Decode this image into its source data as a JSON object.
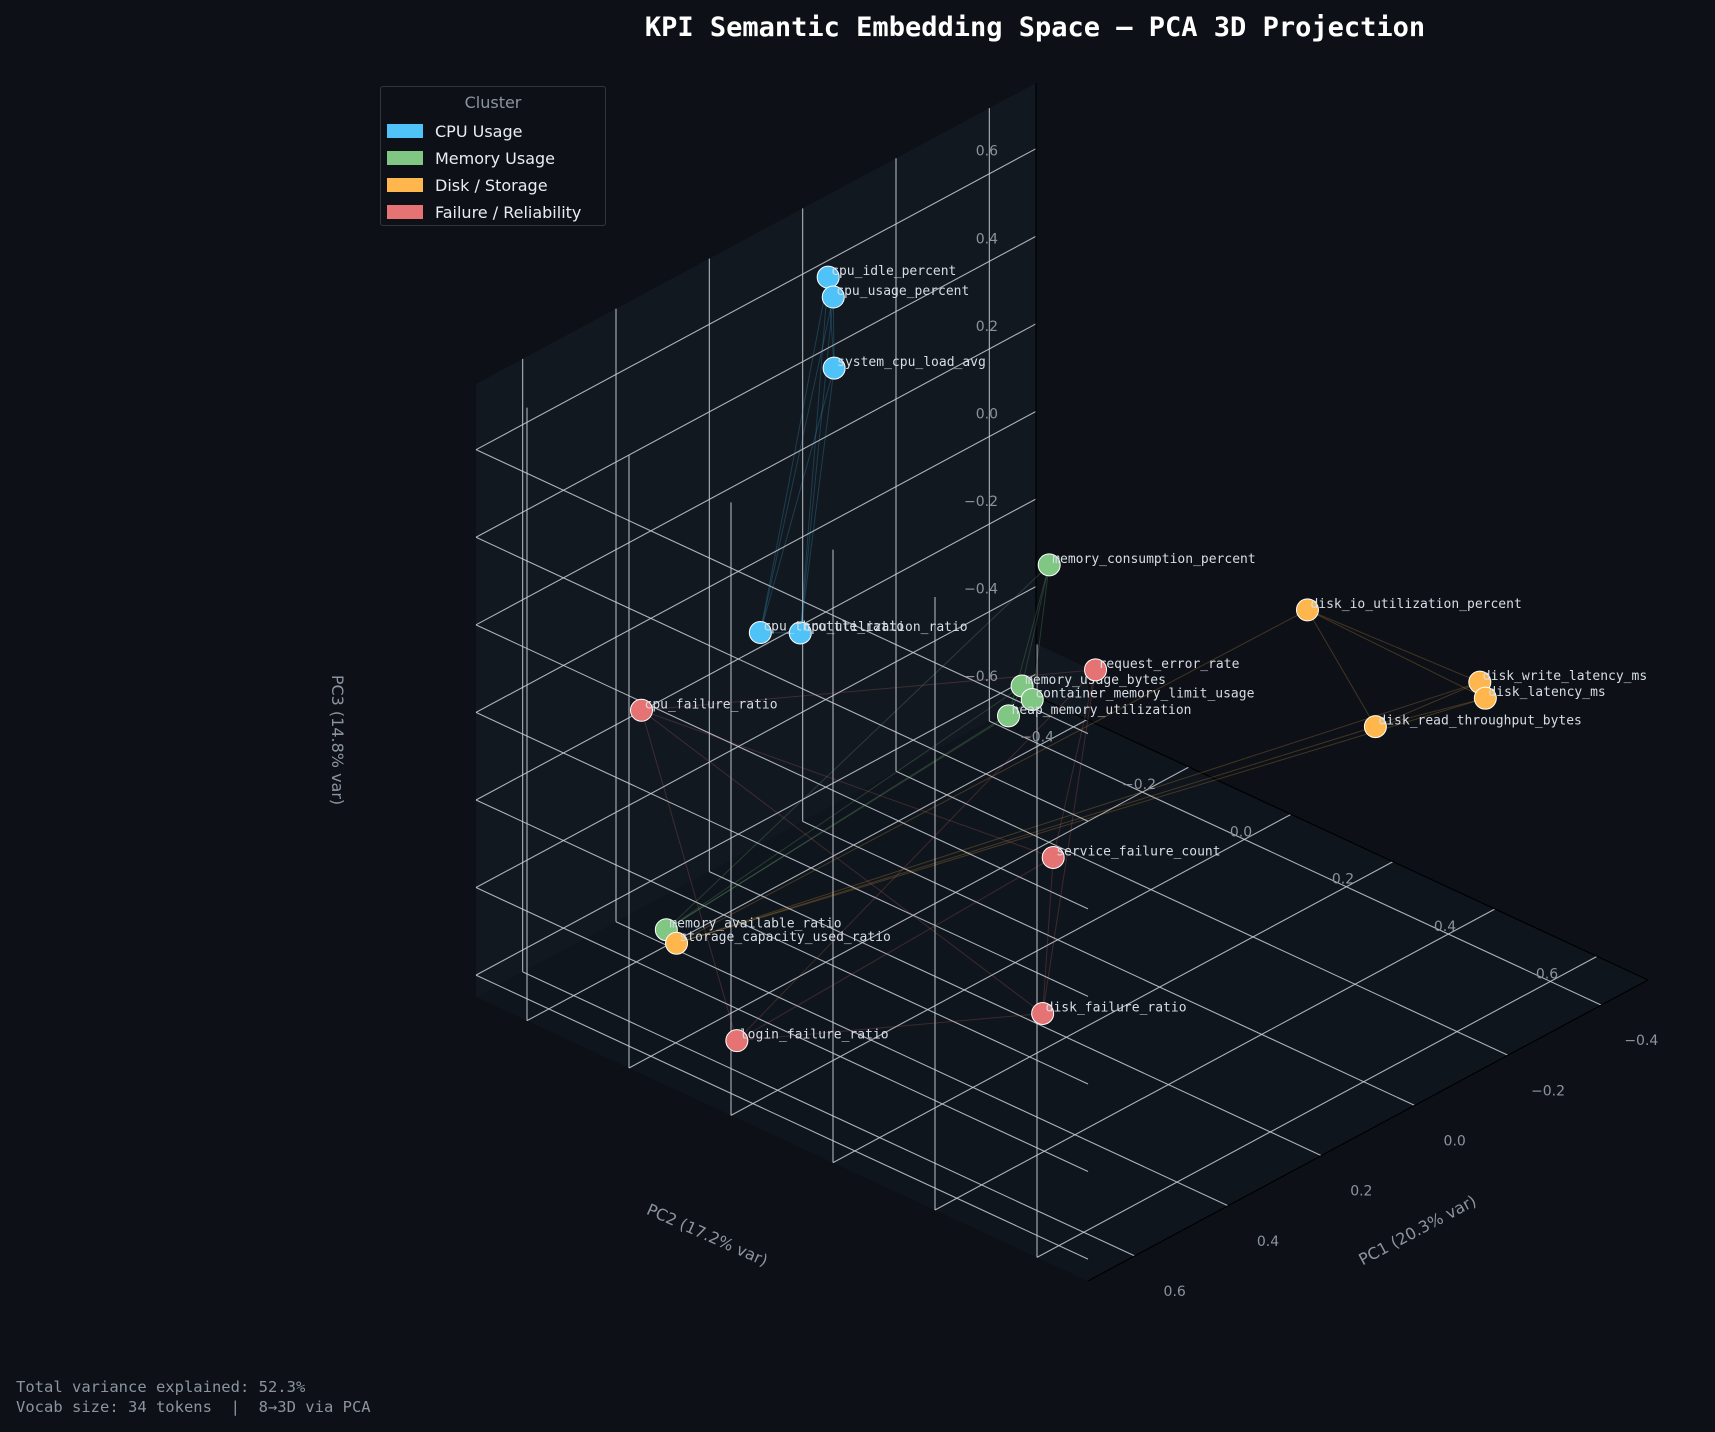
{
  "chart_data": {
    "type": "scatter",
    "title": "KPI Semantic Embedding Space  —  PCA 3D Projection",
    "xlabel": "PC1  (20.3% var)",
    "ylabel": "PC2  (17.2% var)",
    "zlabel": "PC3  (14.8% var)",
    "xlim": [
      -0.5,
      0.7
    ],
    "ylim": [
      -0.5,
      0.7
    ],
    "zlim": [
      -0.65,
      0.75
    ],
    "x_ticks": [
      "−0.4",
      "−0.2",
      "0.0",
      "0.2",
      "0.4",
      "0.6"
    ],
    "y_ticks": [
      "−0.4",
      "−0.2",
      "0.0",
      "0.2",
      "0.4",
      "0.6"
    ],
    "z_ticks": [
      "−0.6",
      "−0.4",
      "−0.2",
      "0.0",
      "0.2",
      "0.4",
      "0.6"
    ],
    "grid": true,
    "legend": {
      "title": "Cluster",
      "placement": "upper-left",
      "entries": [
        {
          "name": "CPU Usage",
          "color": "#4fc3f7"
        },
        {
          "name": "Memory Usage",
          "color": "#81c784"
        },
        {
          "name": "Disk / Storage",
          "color": "#ffb74d"
        },
        {
          "name": "Failure / Reliability",
          "color": "#e57373"
        }
      ]
    },
    "points": [
      {
        "label": "cpu_idle_percent",
        "cluster": 0,
        "x": 0.0,
        "y": -0.45,
        "z": 0.62
      },
      {
        "label": "cpu_usage_percent",
        "cluster": 0,
        "x": 0.0,
        "y": -0.44,
        "z": 0.58
      },
      {
        "label": "system_cpu_load_avg",
        "cluster": 0,
        "x": 0.02,
        "y": -0.42,
        "z": 0.44
      },
      {
        "label": "cpu_utilization_ratio",
        "cluster": 0,
        "x": 0.18,
        "y": -0.34,
        "z": -0.03
      },
      {
        "label": "cpu_throttle_ratio",
        "cluster": 0,
        "x": 0.2,
        "y": -0.4,
        "z": -0.05
      },
      {
        "label": "memory_consumption_percent",
        "cluster": 1,
        "x": 0.04,
        "y": 0.02,
        "z": 0.24
      },
      {
        "label": "memory_usage_bytes",
        "cluster": 1,
        "x": 0.12,
        "y": 0.04,
        "z": 0.02
      },
      {
        "label": "container_memory_limit_usage",
        "cluster": 1,
        "x": 0.12,
        "y": 0.06,
        "z": 0.0
      },
      {
        "label": "heap_memory_utilization",
        "cluster": 1,
        "x": 0.16,
        "y": 0.05,
        "z": -0.02
      },
      {
        "label": "memory_available_ratio",
        "cluster": 1,
        "x": 0.62,
        "y": -0.2,
        "z": -0.38
      },
      {
        "label": "disk_io_utilization_percent",
        "cluster": 2,
        "x": -0.12,
        "y": 0.38,
        "z": 0.24
      },
      {
        "label": "disk_write_latency_ms",
        "cluster": 2,
        "x": -0.38,
        "y": 0.48,
        "z": -0.02
      },
      {
        "label": "disk_latency_ms",
        "cluster": 2,
        "x": -0.37,
        "y": 0.5,
        "z": -0.04
      },
      {
        "label": "disk_read_throughput_bytes",
        "cluster": 2,
        "x": -0.2,
        "y": 0.44,
        "z": -0.04
      },
      {
        "label": "storage_capacity_used_ratio",
        "cluster": 2,
        "x": 0.62,
        "y": -0.18,
        "z": -0.4
      },
      {
        "label": "request_error_rate",
        "cluster": 3,
        "x": 0.05,
        "y": 0.12,
        "z": 0.06
      },
      {
        "label": "service_failure_count",
        "cluster": 3,
        "x": 0.25,
        "y": 0.22,
        "z": -0.2
      },
      {
        "label": "cpu_failure_ratio",
        "cluster": 3,
        "x": 0.4,
        "y": -0.45,
        "z": -0.14
      },
      {
        "label": "disk_failure_ratio",
        "cluster": 3,
        "x": 0.36,
        "y": 0.3,
        "z": -0.45
      },
      {
        "label": "login_failure_ratio",
        "cluster": 3,
        "x": 0.6,
        "y": -0.08,
        "z": -0.58
      }
    ]
  },
  "footer": {
    "line1": "Total variance explained: 52.3%",
    "line2": "Vocab size: 34 tokens  |  8→3D via PCA"
  }
}
